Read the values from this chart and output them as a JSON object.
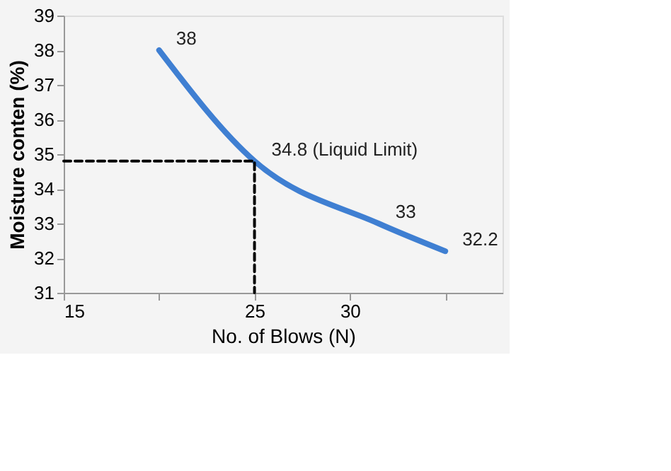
{
  "chart_data": {
    "type": "line",
    "xlabel": "No. of Blows (N)",
    "ylabel": "Moisture conten (%)",
    "xlim": [
      15,
      38
    ],
    "xticks": [
      15,
      {
        "value": 20,
        "label": null
      },
      25,
      30,
      {
        "value": 35,
        "label": null
      }
    ],
    "ylim": [
      31,
      39
    ],
    "yticks": [
      31,
      32,
      33,
      34,
      35,
      36,
      37,
      38,
      39
    ],
    "grid": false,
    "marker": "none",
    "series": [
      {
        "color": "#3f7fd2",
        "x": [
          20,
          25,
          31.5,
          35
        ],
        "values": [
          38,
          34.8,
          33,
          32.2
        ],
        "value_labels": [
          "38",
          "34.8 (Liquid Limit)",
          "33",
          "32.2"
        ],
        "line_style": "solid"
      },
      {
        "color": "#000000",
        "x": [
          15,
          25,
          25
        ],
        "values": [
          34.8,
          34.8,
          31
        ],
        "line_style": "dashed"
      }
    ]
  }
}
